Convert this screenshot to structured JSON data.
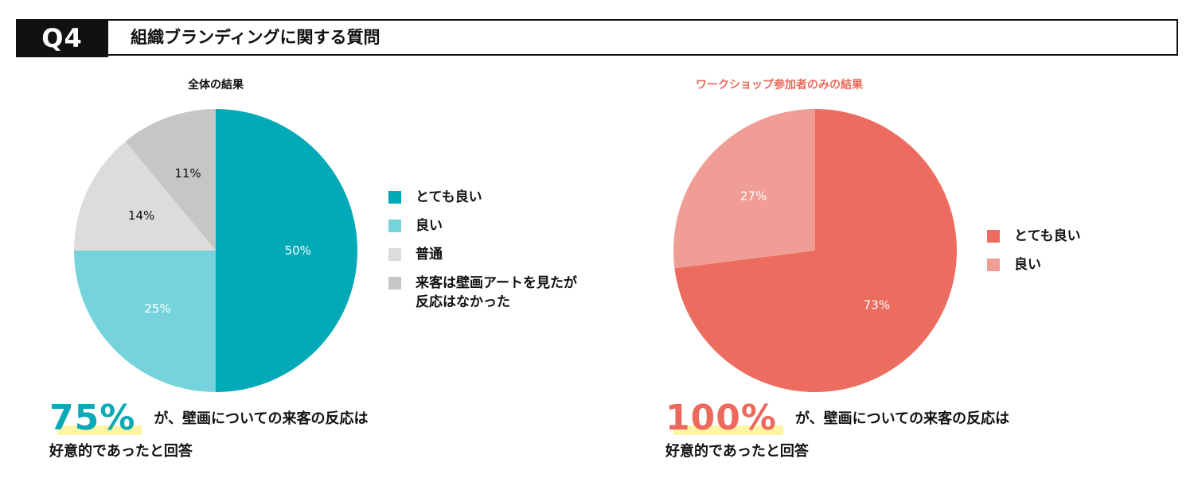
{
  "header": {
    "badge": "Q4",
    "title": "組織ブランディングに関する質問"
  },
  "chart_data": [
    {
      "type": "pie",
      "title": "全体の結果",
      "categories": [
        "とても良い",
        "良い",
        "普通",
        "来客は壁画アートを見たが\n反応はなかった"
      ],
      "values": [
        50,
        25,
        14,
        11
      ],
      "labels": [
        "50%",
        "25%",
        "14%",
        "11%"
      ],
      "colors": [
        "#02a9b7",
        "#76d3db",
        "#dcdcdc",
        "#c6c6c6"
      ],
      "label_colors": [
        "#ffffff",
        "#ffffff",
        "#111111",
        "#111111"
      ],
      "legend_position": "right"
    },
    {
      "type": "pie",
      "title": "ワークショップ参加者のみの結果",
      "categories": [
        "とても良い",
        "良い"
      ],
      "values": [
        73,
        27
      ],
      "labels": [
        "73%",
        "27%"
      ],
      "colors": [
        "#ec6d5f",
        "#f09e95"
      ],
      "label_colors": [
        "#ffffff",
        "#ffffff"
      ],
      "legend_position": "right"
    }
  ],
  "summary_left": {
    "big": "75%",
    "line1": "が、壁画についての来客の反応は",
    "line2": "好意的であったと回答"
  },
  "summary_right": {
    "big": "100%",
    "line1": "が、壁画についての来客の反応は",
    "line2": "好意的であったと回答"
  }
}
